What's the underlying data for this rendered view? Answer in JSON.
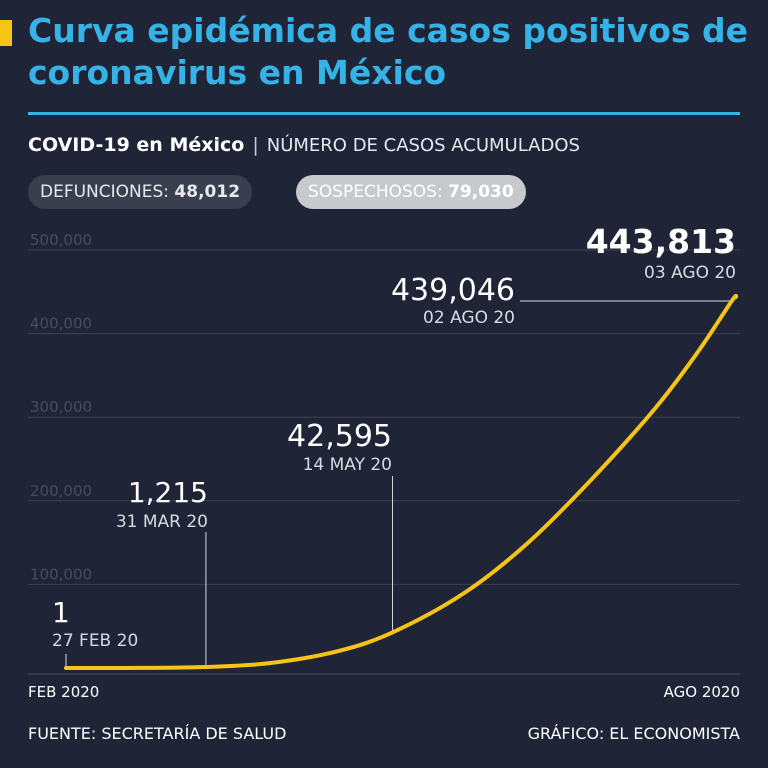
{
  "title": "Curva epidémica de casos positivos de coronavirus en México",
  "subtitle": {
    "strong": "COVID-19 en México",
    "separator": "|",
    "light": "NÚMERO DE CASOS ACUMULADOS"
  },
  "badges": {
    "deaths_label": "DEFUNCIONES:",
    "deaths_value": "48,012",
    "suspects_label": "SOSPECHOSOS:",
    "suspects_value": "79,030"
  },
  "colors": {
    "background": "#1f2437",
    "title": "#36b3e6",
    "line": "#f6c417",
    "grid": "#3b4052"
  },
  "chart_data": {
    "type": "line",
    "ylim": [
      0,
      500000
    ],
    "y_ticks": [
      {
        "value": 100000,
        "label": "100,000"
      },
      {
        "value": 200000,
        "label": "200,000"
      },
      {
        "value": 300000,
        "label": "300,000"
      },
      {
        "value": 400000,
        "label": "400,000"
      },
      {
        "value": 500000,
        "label": "500,000"
      }
    ],
    "x_start_label": "FEB 2020",
    "x_end_label": "AGO 2020",
    "x_range": [
      "2020-02-27",
      "2020-08-03"
    ],
    "series": [
      {
        "points": [
          {
            "x": "2020-02-27",
            "y": 1
          },
          {
            "x": "2020-03-15",
            "y": 100
          },
          {
            "x": "2020-03-31",
            "y": 1215
          },
          {
            "x": "2020-04-15",
            "y": 5847
          },
          {
            "x": "2020-05-01",
            "y": 20000
          },
          {
            "x": "2020-05-14",
            "y": 42595
          },
          {
            "x": "2020-05-31",
            "y": 90000
          },
          {
            "x": "2020-06-15",
            "y": 150000
          },
          {
            "x": "2020-06-30",
            "y": 226000
          },
          {
            "x": "2020-07-15",
            "y": 311000
          },
          {
            "x": "2020-07-25",
            "y": 378000
          },
          {
            "x": "2020-08-02",
            "y": 439046
          },
          {
            "x": "2020-08-03",
            "y": 443813
          }
        ]
      }
    ],
    "annotations": [
      {
        "value": "1",
        "date": "27 FEB 20",
        "x": "2020-02-27",
        "y": 1
      },
      {
        "value": "1,215",
        "date": "31 MAR 20",
        "x": "2020-03-31",
        "y": 1215
      },
      {
        "value": "42,595",
        "date": "14 MAY 20",
        "x": "2020-05-14",
        "y": 42595
      },
      {
        "value": "439,046",
        "date": "02 AGO 20",
        "x": "2020-08-02",
        "y": 439046
      },
      {
        "value": "443,813",
        "date": "03 AGO 20",
        "x": "2020-08-03",
        "y": 443813
      }
    ]
  },
  "footer": {
    "source": "FUENTE: SECRETARÍA DE SALUD",
    "credit": "GRÁFICO: EL ECONOMISTA"
  }
}
